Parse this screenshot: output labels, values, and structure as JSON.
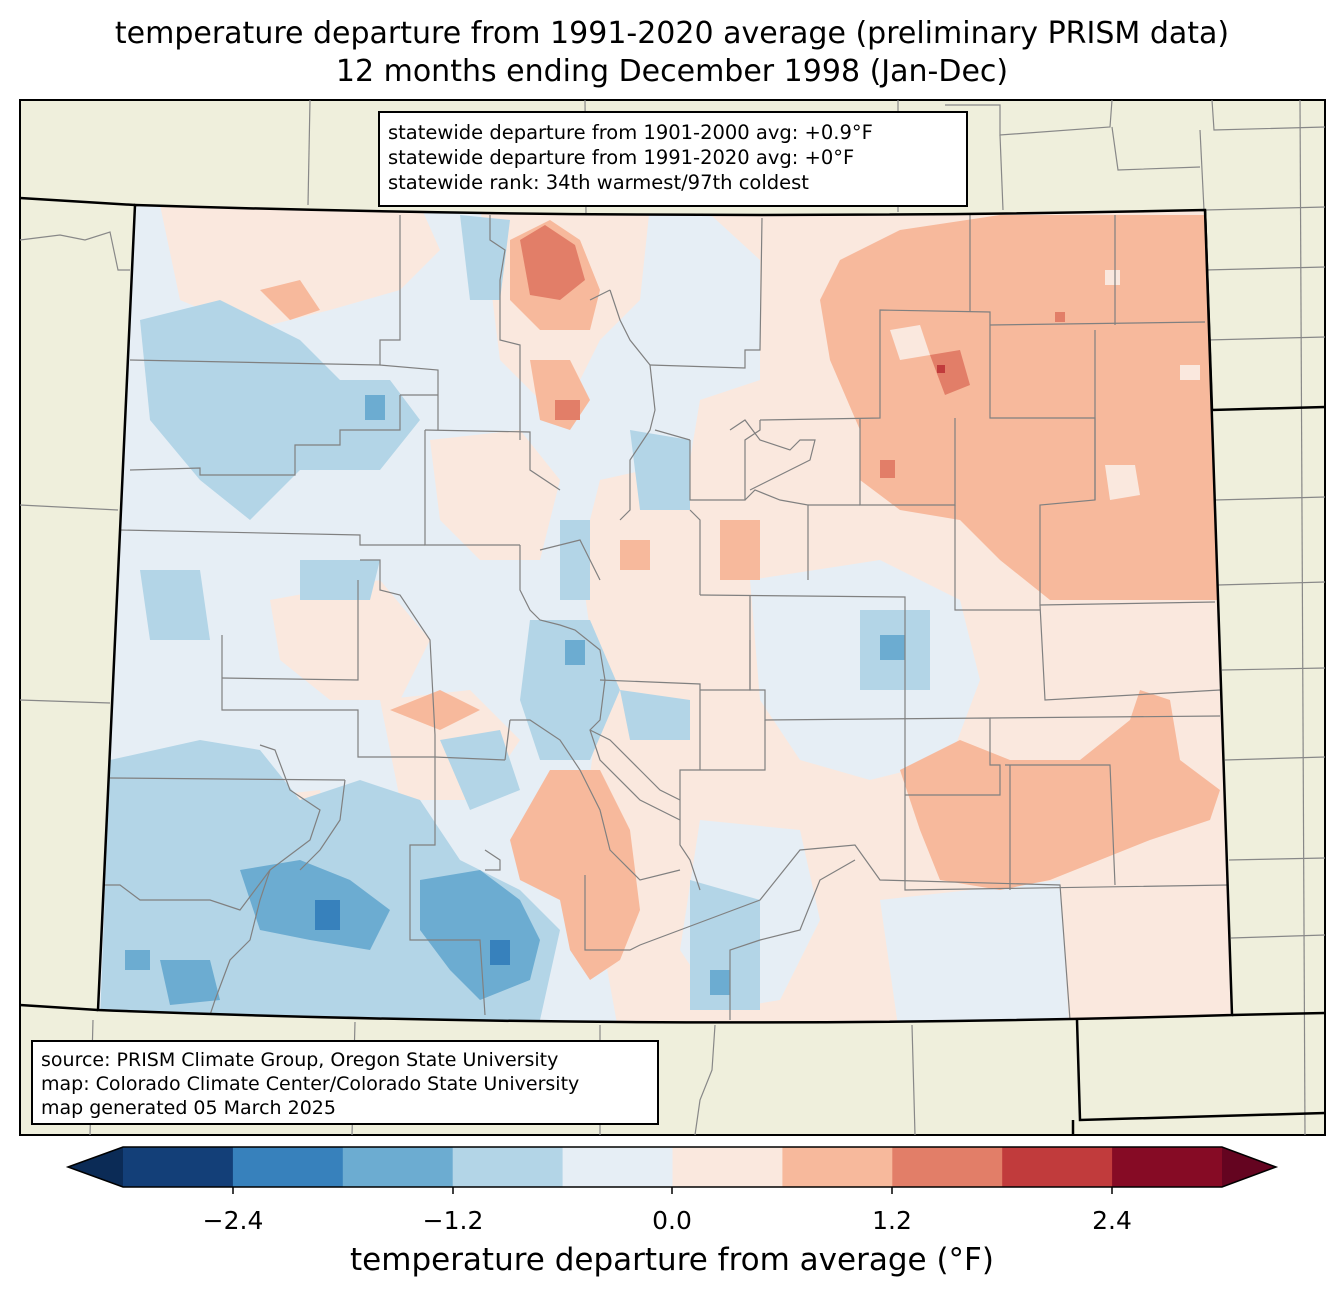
{
  "title": {
    "line1": "temperature departure from 1991-2020 average (preliminary PRISM data)",
    "line2": "12 months ending December 1998 (Jan-Dec)"
  },
  "stats": {
    "line1": "statewide departure from 1901-2000 avg: +0.9°F",
    "line2": "statewide departure from 1991-2020 avg: +0°F",
    "line3": "statewide rank: 34th warmest/97th coldest"
  },
  "source": {
    "line1": "source: PRISM Climate Group, Oregon State University",
    "line2": "map: Colorado Climate Center/Colorado State University",
    "line3": "map generated 05 March 2025"
  },
  "colorbar": {
    "label": "temperature departure from average (°F)",
    "ticks": [
      "−2.4",
      "−1.2",
      "0.0",
      "1.2",
      "2.4"
    ],
    "bins": [
      {
        "color": "#133f78"
      },
      {
        "color": "#3781bc"
      },
      {
        "color": "#6cacd1"
      },
      {
        "color": "#b3d5e7"
      },
      {
        "color": "#e6eef5"
      },
      {
        "color": "#fae8de"
      },
      {
        "color": "#f7b99c"
      },
      {
        "color": "#e27e68"
      },
      {
        "color": "#c13b3c"
      },
      {
        "color": "#860b25"
      }
    ],
    "under_color": "#0b2b56",
    "over_color": "#640420"
  },
  "map_colors": {
    "land_outside": "#efefdc",
    "state_fill": "#e6eef5"
  }
}
